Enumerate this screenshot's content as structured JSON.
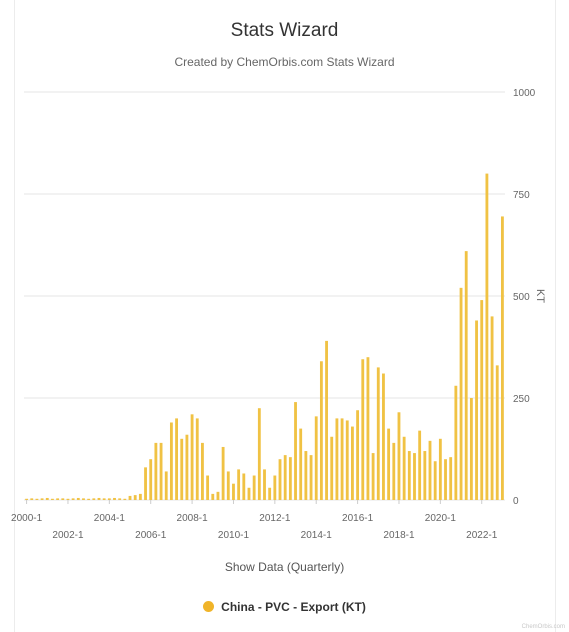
{
  "title": "Stats Wizard",
  "subtitle": "Created by ChemOrbis.com Stats Wizard",
  "xaxis_title": "Show Data (Quarterly)",
  "legend_label": "China - PVC - Export (KT)",
  "credit": "ChemOrbis.com",
  "colors": {
    "bar": "#f0c244",
    "legend_marker": "#f0b429",
    "grid": "#e6e6e6"
  },
  "chart_data": {
    "type": "bar",
    "title": "Stats Wizard",
    "subtitle": "Created by ChemOrbis.com Stats Wizard",
    "xlabel": "Show Data (Quarterly)",
    "ylabel": "KT",
    "ylim": [
      0,
      1000
    ],
    "yticks": [
      0,
      250,
      500,
      750,
      1000
    ],
    "xtick_labels": [
      "2000-1",
      "2002-1",
      "2004-1",
      "2006-1",
      "2008-1",
      "2010-1",
      "2012-1",
      "2014-1",
      "2016-1",
      "2018-1",
      "2020-1",
      "2022-1"
    ],
    "grid": true,
    "legend_position": "bottom",
    "series": [
      {
        "name": "China - PVC - Export (KT)",
        "categories": [
          "2000-1",
          "2000-2",
          "2000-3",
          "2000-4",
          "2001-1",
          "2001-2",
          "2001-3",
          "2001-4",
          "2002-1",
          "2002-2",
          "2002-3",
          "2002-4",
          "2003-1",
          "2003-2",
          "2003-3",
          "2003-4",
          "2004-1",
          "2004-2",
          "2004-3",
          "2004-4",
          "2005-1",
          "2005-2",
          "2005-3",
          "2005-4",
          "2006-1",
          "2006-2",
          "2006-3",
          "2006-4",
          "2007-1",
          "2007-2",
          "2007-3",
          "2007-4",
          "2008-1",
          "2008-2",
          "2008-3",
          "2008-4",
          "2009-1",
          "2009-2",
          "2009-3",
          "2009-4",
          "2010-1",
          "2010-2",
          "2010-3",
          "2010-4",
          "2011-1",
          "2011-2",
          "2011-3",
          "2011-4",
          "2012-1",
          "2012-2",
          "2012-3",
          "2012-4",
          "2013-1",
          "2013-2",
          "2013-3",
          "2013-4",
          "2014-1",
          "2014-2",
          "2014-3",
          "2014-4",
          "2015-1",
          "2015-2",
          "2015-3",
          "2015-4",
          "2016-1",
          "2016-2",
          "2016-3",
          "2016-4",
          "2017-1",
          "2017-2",
          "2017-3",
          "2017-4",
          "2018-1",
          "2018-2",
          "2018-3",
          "2018-4",
          "2019-1",
          "2019-2",
          "2019-3",
          "2019-4",
          "2020-1",
          "2020-2",
          "2020-3",
          "2020-4",
          "2021-1",
          "2021-2",
          "2021-3",
          "2021-4",
          "2022-1",
          "2022-2",
          "2022-3",
          "2022-4",
          "2023-1"
        ],
        "values": [
          3,
          4,
          3,
          4,
          5,
          3,
          4,
          4,
          3,
          4,
          5,
          4,
          3,
          4,
          5,
          4,
          4,
          5,
          4,
          3,
          10,
          12,
          15,
          80,
          100,
          140,
          140,
          70,
          190,
          200,
          150,
          160,
          210,
          200,
          140,
          60,
          15,
          20,
          130,
          70,
          40,
          75,
          65,
          30,
          60,
          225,
          75,
          30,
          60,
          100,
          110,
          105,
          240,
          175,
          120,
          110,
          205,
          340,
          390,
          155,
          200,
          200,
          195,
          180,
          220,
          345,
          350,
          115,
          325,
          310,
          175,
          140,
          215,
          155,
          120,
          115,
          170,
          120,
          145,
          95,
          150,
          100,
          105,
          280,
          520,
          610,
          250,
          440,
          490,
          800,
          450,
          330,
          695
        ]
      }
    ]
  }
}
